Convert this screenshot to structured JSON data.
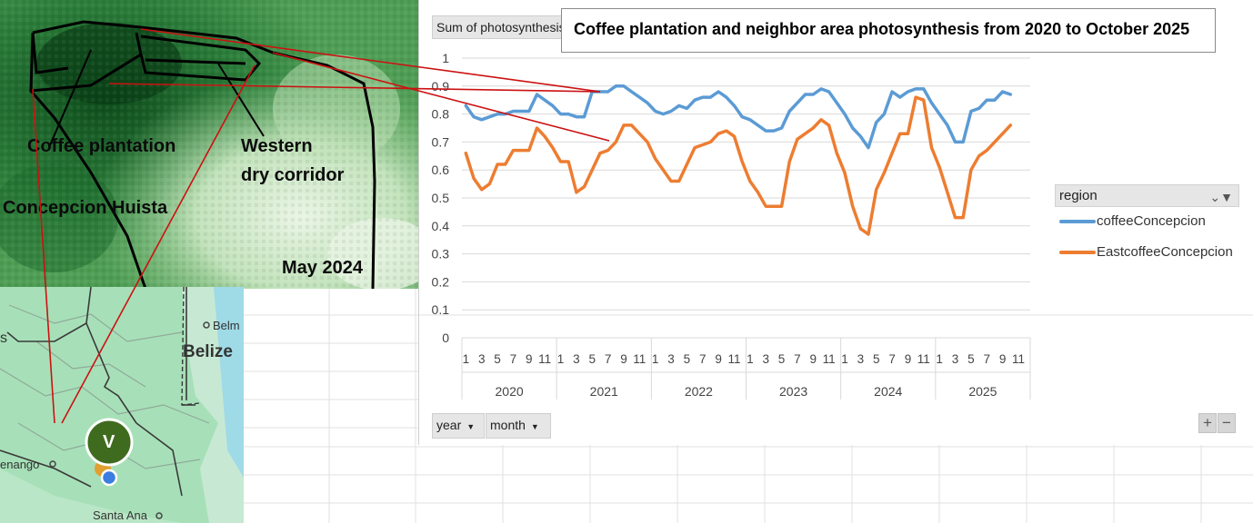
{
  "satellite_map": {
    "labels": {
      "coffee": "Coffee plantation",
      "concepcion": "Concepcion Huista",
      "western_1": "Western",
      "western_2": "dry corridor",
      "date": "May 2024"
    }
  },
  "road_map": {
    "places": {
      "belize": "Belize",
      "belm": "Belm",
      "tenango": "enango",
      "santa_ana": "Santa Ana",
      "edge_s": "s"
    },
    "marker_letter": "V"
  },
  "pivot": {
    "value_field": "Sum of photosynthesis",
    "legend_field": "region",
    "axis_fields": [
      "year",
      "month"
    ],
    "zoom_in": "+",
    "zoom_out": "−"
  },
  "colors": {
    "coffee": "#5B9BD5",
    "east": "#ED7D31",
    "grid": "#d9d9d9",
    "annot_line": "#cc1111"
  },
  "chart_data": {
    "type": "line",
    "title": "Coffee plantation and neighbor area photosynthesis from 2020 to October 2025",
    "ylim": [
      0,
      1
    ],
    "yticks": [
      "0",
      "0.1",
      "0.2",
      "0.3",
      "0.4",
      "0.5",
      "0.6",
      "0.7",
      "0.8",
      "0.9",
      "1"
    ],
    "month_ticks": [
      "1",
      "3",
      "5",
      "7",
      "9",
      "11"
    ],
    "years": [
      "2020",
      "2021",
      "2022",
      "2023",
      "2024",
      "2025"
    ],
    "series": [
      {
        "name": "coffeeConcepcion",
        "values": [
          0.83,
          0.79,
          0.78,
          0.79,
          0.8,
          0.8,
          0.81,
          0.81,
          0.81,
          0.87,
          0.85,
          0.83,
          0.8,
          0.8,
          0.79,
          0.79,
          0.88,
          0.88,
          0.88,
          0.9,
          0.9,
          0.88,
          0.86,
          0.84,
          0.81,
          0.8,
          0.81,
          0.83,
          0.82,
          0.85,
          0.86,
          0.86,
          0.88,
          0.86,
          0.83,
          0.79,
          0.78,
          0.76,
          0.74,
          0.74,
          0.75,
          0.81,
          0.84,
          0.87,
          0.87,
          0.89,
          0.88,
          0.84,
          0.8,
          0.75,
          0.72,
          0.68,
          0.77,
          0.8,
          0.88,
          0.86,
          0.88,
          0.89,
          0.89,
          0.84,
          0.8,
          0.76,
          0.7,
          0.7,
          0.81,
          0.82,
          0.85,
          0.85,
          0.88,
          0.87
        ]
      },
      {
        "name": "EastcoffeeConcepcion",
        "values": [
          0.66,
          0.57,
          0.53,
          0.55,
          0.62,
          0.62,
          0.67,
          0.67,
          0.67,
          0.75,
          0.72,
          0.68,
          0.63,
          0.63,
          0.52,
          0.54,
          0.6,
          0.66,
          0.67,
          0.7,
          0.76,
          0.76,
          0.73,
          0.7,
          0.64,
          0.6,
          0.56,
          0.56,
          0.62,
          0.68,
          0.69,
          0.7,
          0.73,
          0.74,
          0.72,
          0.63,
          0.56,
          0.52,
          0.47,
          0.47,
          0.47,
          0.63,
          0.71,
          0.73,
          0.75,
          0.78,
          0.76,
          0.66,
          0.59,
          0.47,
          0.39,
          0.37,
          0.53,
          0.59,
          0.66,
          0.73,
          0.73,
          0.86,
          0.85,
          0.68,
          0.61,
          0.52,
          0.43,
          0.43,
          0.6,
          0.65,
          0.67,
          0.7,
          0.73,
          0.76
        ]
      }
    ],
    "legend": "right",
    "grid": true
  }
}
